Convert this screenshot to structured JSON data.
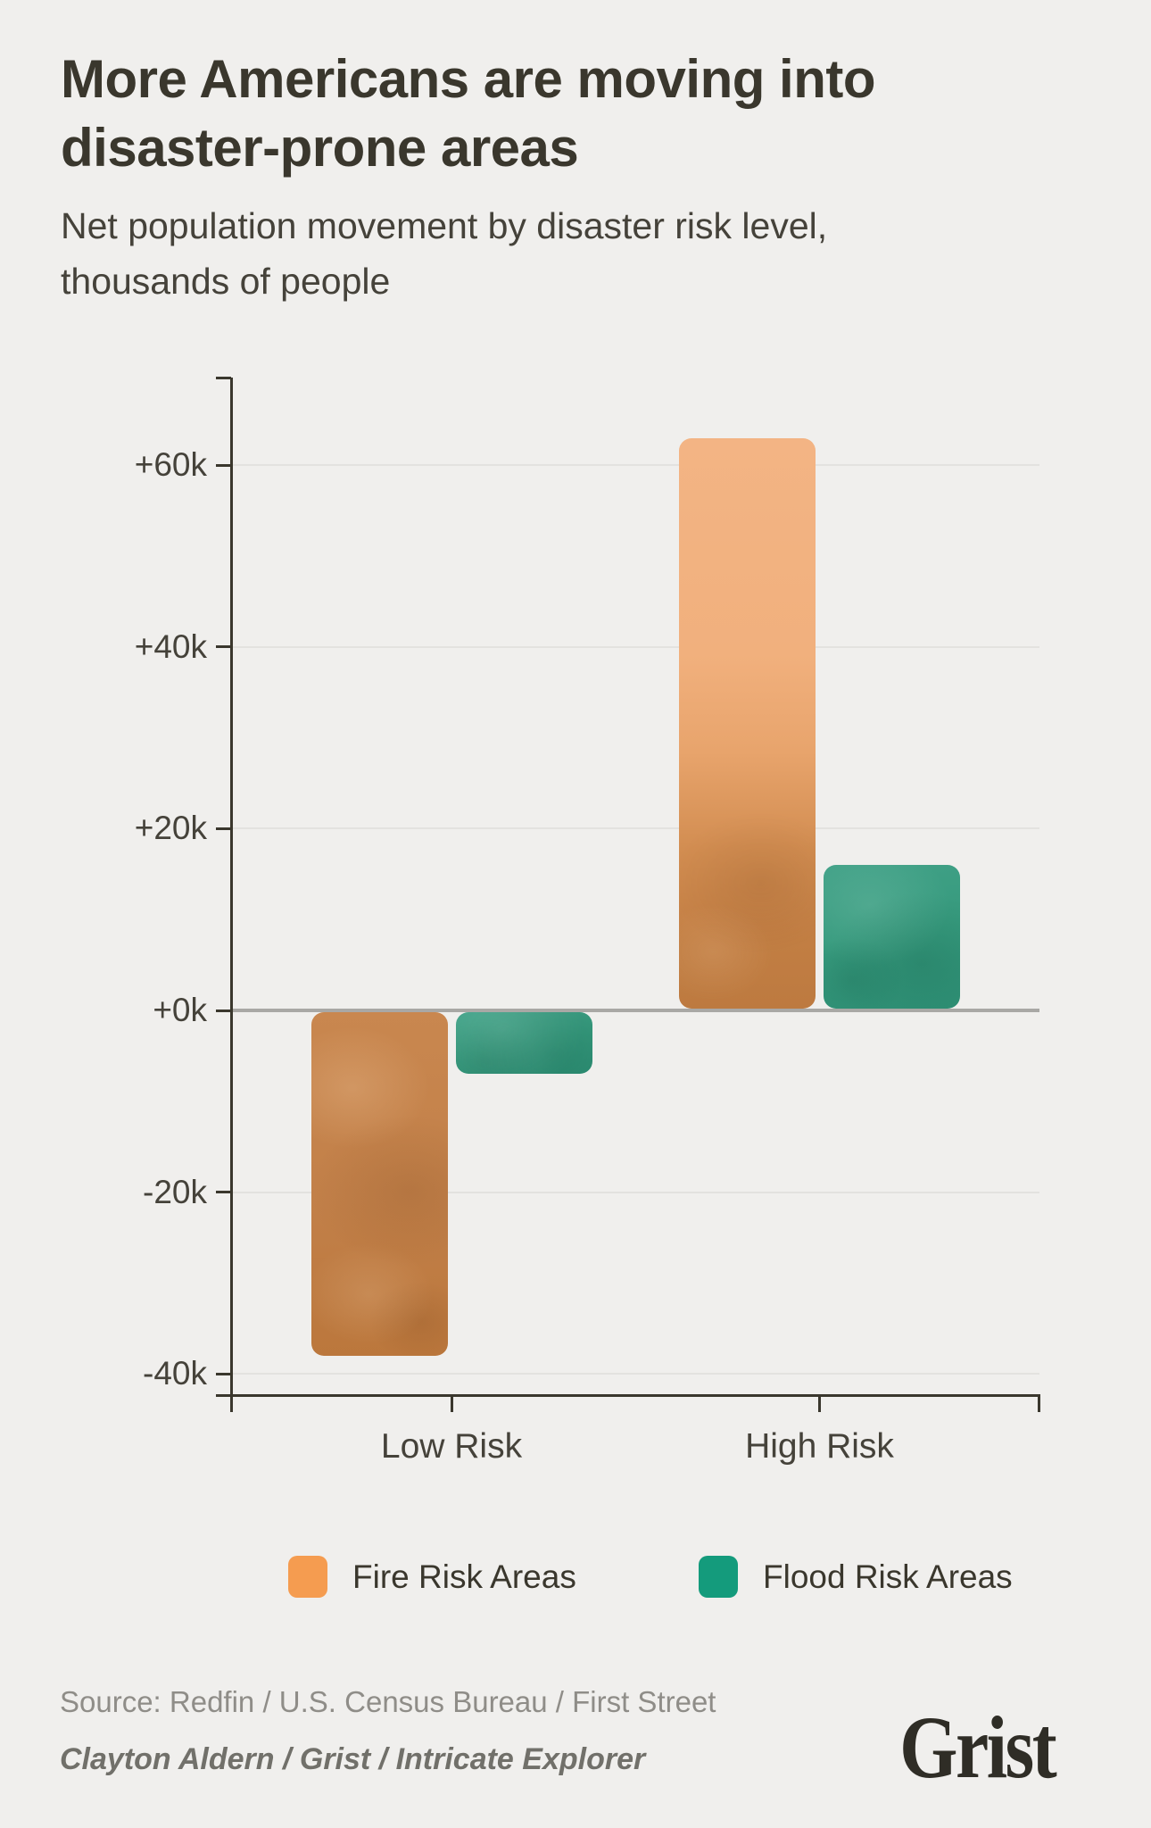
{
  "page": {
    "background": "#f0efed"
  },
  "header": {
    "title_line1": "More Americans are moving into",
    "title_line2": "disaster-prone areas",
    "subtitle_line1": "Net population movement by disaster risk level,",
    "subtitle_line2": "thousands of people"
  },
  "chart_data": {
    "type": "bar",
    "title": "More Americans are moving into disaster-prone areas",
    "subtitle": "Net population movement by disaster risk level, thousands of people",
    "unit": "thousands of people",
    "categories": [
      "Low Risk",
      "High Risk"
    ],
    "series": [
      {
        "name": "Fire Risk Areas",
        "kind": "fire",
        "color": "#f59c50",
        "values": [
          -38,
          63
        ]
      },
      {
        "name": "Flood Risk Areas",
        "kind": "flood",
        "color": "#149b7c",
        "values": [
          -7,
          16
        ]
      }
    ],
    "y_ticks": [
      {
        "label": "+60k",
        "value": 60
      },
      {
        "label": "+40k",
        "value": 40
      },
      {
        "label": "+20k",
        "value": 20
      },
      {
        "label": "+0k",
        "value": 0
      },
      {
        "label": "-20k",
        "value": -20
      },
      {
        "label": "-40k",
        "value": -40
      }
    ],
    "ylim": [
      -42,
      70
    ],
    "grid": true,
    "legend_position": "bottom"
  },
  "legend": {
    "items": [
      {
        "label": "Fire Risk Areas",
        "color": "#f59c50",
        "kind": "fire"
      },
      {
        "label": "Flood Risk Areas",
        "color": "#149b7c",
        "kind": "flood"
      }
    ]
  },
  "footer": {
    "source": "Source: Redfin / U.S. Census Bureau / First Street",
    "credit": "Clayton Aldern / Grist / Intricate Explorer",
    "logo_text": "Grist"
  }
}
